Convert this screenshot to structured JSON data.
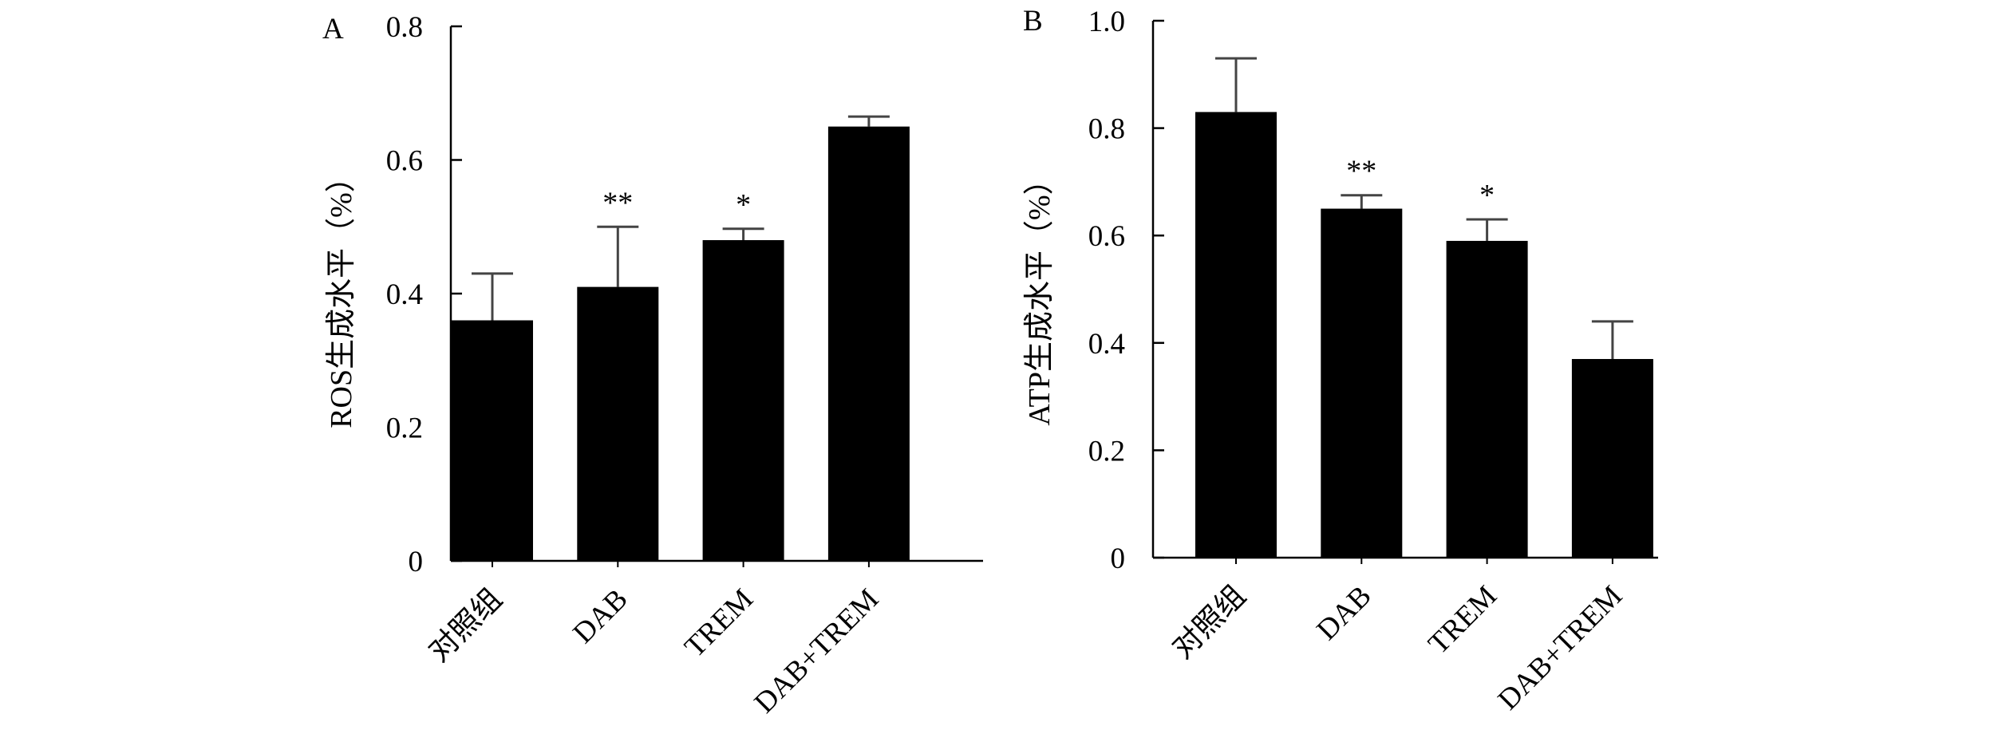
{
  "chart_data": [
    {
      "panel": "A",
      "type": "bar",
      "title": "",
      "xlabel": "",
      "ylabel": "ROS生成水平（%）",
      "categories": [
        "对照组",
        "DAB",
        "TREM",
        "DAB+TREM"
      ],
      "values": [
        0.36,
        0.41,
        0.48,
        0.65
      ],
      "errors": [
        0.07,
        0.09,
        0.017,
        0.015
      ],
      "significance": [
        "",
        "**",
        "*",
        ""
      ],
      "ylim": [
        0,
        0.8
      ],
      "yticks": [
        0,
        0.2,
        0.4,
        0.6,
        0.8
      ],
      "ytick_labels": [
        "0",
        "0.2",
        "0.4",
        "0.6",
        "0.8"
      ],
      "bar_color": "#000000",
      "grid": false
    },
    {
      "panel": "B",
      "type": "bar",
      "title": "",
      "xlabel": "",
      "ylabel": "ATP生成水平（%）",
      "categories": [
        "对照组",
        "DAB",
        "TREM",
        "DAB+TREM"
      ],
      "values": [
        0.83,
        0.65,
        0.59,
        0.37
      ],
      "errors": [
        0.1,
        0.025,
        0.04,
        0.07
      ],
      "significance": [
        "",
        "**",
        "*",
        ""
      ],
      "ylim": [
        0,
        1.0
      ],
      "yticks": [
        0,
        0.2,
        0.4,
        0.6,
        0.8,
        1.0
      ],
      "ytick_labels": [
        "0",
        "0.2",
        "0.4",
        "0.6",
        "0.8",
        "1.0"
      ],
      "bar_color": "#000000",
      "grid": false
    }
  ]
}
